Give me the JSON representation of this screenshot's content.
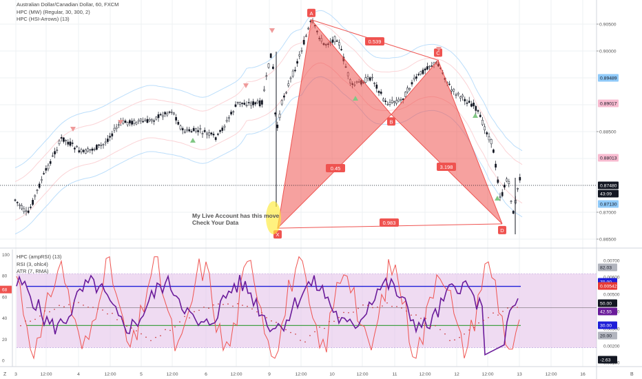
{
  "header": {
    "symbol_line": "Australian Dollar/Canadian Dollar, 60, FXCM",
    "indicators": [
      "HPC (MW) (Regular, 30, 300, 2)",
      "HPC (HSI-Arrows) (13)"
    ]
  },
  "pattern": {
    "points": [
      {
        "label": "X",
        "price": 0.8671
      },
      {
        "label": "A",
        "price": 0.9058
      },
      {
        "label": "B",
        "price": 0.8882
      },
      {
        "label": "C",
        "price": 0.8983
      },
      {
        "label": "D",
        "price": 0.8679
      }
    ],
    "ratios": [
      "0.539",
      "0.45",
      "3.198",
      "0.983"
    ],
    "fill_color": "#ef5350"
  },
  "annotation": [
    "My Live Account has this move",
    "Check Your Data"
  ],
  "price_axis": {
    "ticks": [
      "0.90500",
      "0.90000",
      "0.88500",
      "0.87000",
      "0.86500"
    ],
    "badges": [
      {
        "text": "0.89489",
        "color": "#90caf9"
      },
      {
        "text": "0.89017",
        "color": "#f8bbd0"
      },
      {
        "text": "0.88013",
        "color": "#f8bbd0"
      },
      {
        "text": "0.87480",
        "color": "#131722"
      },
      {
        "text": "43:09",
        "color": "#131722"
      },
      {
        "text": "0.87130",
        "color": "#90caf9"
      }
    ]
  },
  "time_axis": {
    "labels": [
      "3",
      "12:00",
      "4",
      "12:00",
      "5",
      "12:00",
      "6",
      "12:00",
      "9",
      "12:00",
      "10",
      "12:00",
      "11",
      "12:00",
      "12",
      "12:00",
      "13",
      "12:00",
      "16"
    ]
  },
  "oscillator": {
    "legend": [
      "HPC (ampRSI) (13)",
      "RSI (3, ohlc4)",
      "ATR (7, RMA)"
    ],
    "left_ticks": [
      "100",
      "80",
      "60",
      "40",
      "20",
      "0"
    ],
    "left_badge": "68",
    "right_ticks": [
      "0.00700",
      "0.00600",
      "0.00500",
      "0.00400",
      "0.00300",
      "0.00200",
      "0.00100"
    ],
    "right_badges": [
      {
        "text": "82.03",
        "color": "#b2b5be"
      },
      {
        "text": "70.00",
        "color": "#1e1ed8"
      },
      {
        "text": "0.00542",
        "color": "#e53935"
      },
      {
        "text": "50.00",
        "color": "#131722"
      },
      {
        "text": "42.55",
        "color": "#6a1b9a"
      },
      {
        "text": "30.00",
        "color": "#1e1ed8"
      },
      {
        "text": "20.00",
        "color": "#b2b5be"
      },
      {
        "text": "-2.63",
        "color": "#131722"
      }
    ]
  },
  "corner": {
    "left": "Z",
    "right": "B"
  }
}
